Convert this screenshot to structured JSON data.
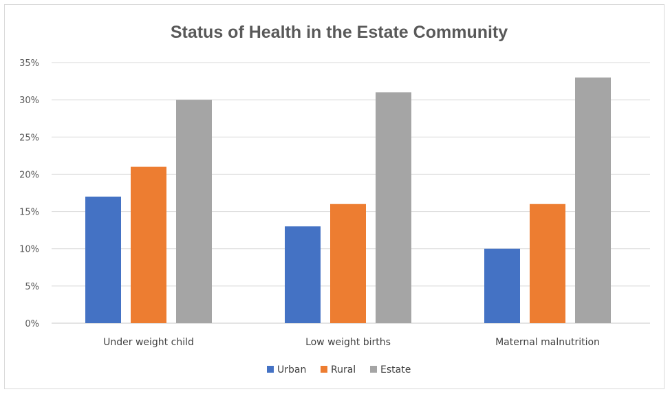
{
  "chart_data": {
    "type": "bar",
    "title": "Status of Health in the Estate Community",
    "categories": [
      "Under weight child",
      "Low weight births",
      "Maternal malnutrition"
    ],
    "series": [
      {
        "name": "Urban",
        "color": "#4472C4",
        "values": [
          17,
          13,
          10
        ]
      },
      {
        "name": "Rural",
        "color": "#ED7D31",
        "values": [
          21,
          16,
          16
        ]
      },
      {
        "name": "Estate",
        "color": "#A5A5A5",
        "values": [
          30,
          31,
          33
        ]
      }
    ],
    "ylim": [
      0,
      35
    ],
    "yticks": [
      "0%",
      "5%",
      "10%",
      "15%",
      "20%",
      "25%",
      "30%",
      "35%"
    ],
    "ytick_values": [
      0,
      5,
      10,
      15,
      20,
      25,
      30,
      35
    ],
    "grid": true,
    "legend_position": "bottom"
  }
}
